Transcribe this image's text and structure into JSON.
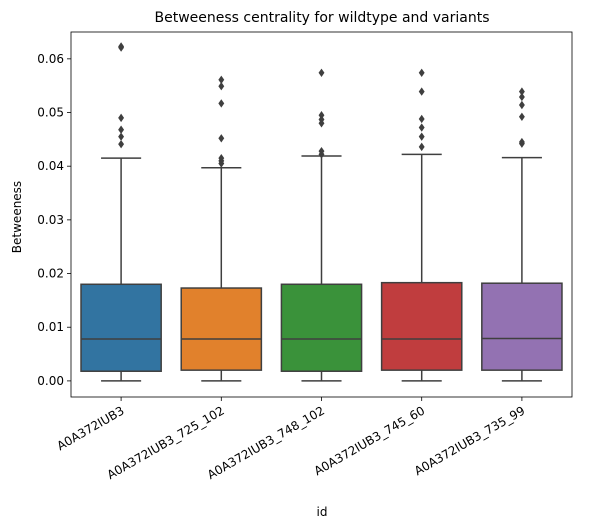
{
  "chart_data": {
    "type": "box",
    "title": "Betweeness centrality for wildtype and variants",
    "xlabel": "id",
    "ylabel": "Betweeness",
    "ylim": [
      -0.003,
      0.065
    ],
    "yticks": [
      0.0,
      0.01,
      0.02,
      0.03,
      0.04,
      0.05,
      0.06
    ],
    "ytick_labels": [
      "0.00",
      "0.01",
      "0.02",
      "0.03",
      "0.04",
      "0.05",
      "0.06"
    ],
    "grid": false,
    "categories": [
      "A0A372IUB3",
      "A0A372IUB3_725_102",
      "A0A372IUB3_748_102",
      "A0A372IUB3_745_60",
      "A0A372IUB3_735_99"
    ],
    "series": [
      {
        "color": "#3274a1",
        "min": 0.0,
        "q1": 0.0018,
        "median": 0.0078,
        "q3": 0.018,
        "max": 0.0415,
        "outliers": [
          0.0623,
          0.0621,
          0.049,
          0.0468,
          0.0455,
          0.0441
        ]
      },
      {
        "color": "#e1812c",
        "min": 0.0,
        "q1": 0.002,
        "median": 0.0078,
        "q3": 0.0173,
        "max": 0.0397,
        "outliers": [
          0.0561,
          0.0549,
          0.0517,
          0.0452,
          0.0415,
          0.041,
          0.0405
        ]
      },
      {
        "color": "#3a923a",
        "min": 0.0,
        "q1": 0.0018,
        "median": 0.0078,
        "q3": 0.018,
        "max": 0.0419,
        "outliers": [
          0.0574,
          0.0495,
          0.0487,
          0.048,
          0.0428,
          0.0422
        ]
      },
      {
        "color": "#c03d3e",
        "min": 0.0,
        "q1": 0.002,
        "median": 0.0078,
        "q3": 0.0183,
        "max": 0.0422,
        "outliers": [
          0.0574,
          0.0539,
          0.0488,
          0.0472,
          0.0455,
          0.0436
        ]
      },
      {
        "color": "#9372b2",
        "min": 0.0,
        "q1": 0.002,
        "median": 0.0079,
        "q3": 0.0182,
        "max": 0.0416,
        "outliers": [
          0.0539,
          0.0529,
          0.0514,
          0.0492,
          0.0445,
          0.0442
        ]
      }
    ]
  }
}
